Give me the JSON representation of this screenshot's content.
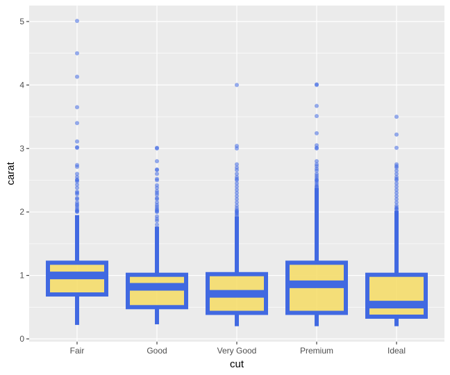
{
  "chart_data": {
    "type": "boxplot",
    "xlabel": "cut",
    "ylabel": "carat",
    "categories": [
      "Fair",
      "Good",
      "Very Good",
      "Premium",
      "Ideal"
    ],
    "ylim": [
      -0.04,
      5.25
    ],
    "yticks": [
      0,
      1,
      2,
      3,
      4,
      5
    ],
    "grid": true,
    "colors": {
      "box_outline": "#4169e1",
      "box_fill": "#f5dd6b",
      "outlier": "#4169e1",
      "panel": "#ebebeb"
    },
    "boxes": [
      {
        "cat": "Fair",
        "whisker_low": 0.22,
        "q1": 0.7,
        "median": 1.0,
        "q3": 1.2,
        "whisker_high": 1.95,
        "outliers": [
          5.01,
          4.5,
          4.13,
          3.65,
          3.4,
          3.11,
          3.02,
          3.01,
          2.74,
          2.71,
          2.6,
          2.55,
          2.51,
          2.5,
          2.48,
          2.43,
          2.38,
          2.32,
          2.3,
          2.28,
          2.22,
          2.2,
          2.15,
          2.12,
          2.1,
          2.07,
          2.04,
          2.02,
          2.01,
          2.0
        ]
      },
      {
        "cat": "Good",
        "whisker_low": 0.23,
        "q1": 0.5,
        "median": 0.82,
        "q3": 1.01,
        "whisker_high": 1.77,
        "outliers": [
          3.01,
          3.0,
          2.8,
          2.67,
          2.66,
          2.6,
          2.52,
          2.5,
          2.42,
          2.38,
          2.33,
          2.3,
          2.27,
          2.22,
          2.2,
          2.15,
          2.11,
          2.08,
          2.05,
          2.03,
          2.01,
          2.0,
          1.93,
          1.89,
          1.86,
          1.8
        ]
      },
      {
        "cat": "Very Good",
        "whisker_low": 0.2,
        "q1": 0.41,
        "median": 0.71,
        "q3": 1.02,
        "whisker_high": 1.93,
        "outliers": [
          4.0,
          3.04,
          3.0,
          2.75,
          2.7,
          2.66,
          2.6,
          2.55,
          2.52,
          2.5,
          2.45,
          2.4,
          2.35,
          2.3,
          2.25,
          2.2,
          2.15,
          2.1,
          2.06,
          2.03,
          2.01,
          2.0,
          1.98,
          1.96,
          1.94
        ]
      },
      {
        "cat": "Premium",
        "whisker_low": 0.2,
        "q1": 0.41,
        "median": 0.86,
        "q3": 1.2,
        "whisker_high": 2.38,
        "outliers": [
          4.01,
          4.0,
          3.67,
          3.51,
          3.24,
          3.05,
          3.01,
          3.0,
          2.8,
          2.75,
          2.72,
          2.68,
          2.65,
          2.6,
          2.57,
          2.54,
          2.51,
          2.5,
          2.48,
          2.45,
          2.42,
          2.4,
          2.39
        ]
      },
      {
        "cat": "Ideal",
        "whisker_low": 0.2,
        "q1": 0.35,
        "median": 0.54,
        "q3": 1.01,
        "whisker_high": 2.02,
        "outliers": [
          3.5,
          3.22,
          3.01,
          2.75,
          2.72,
          2.7,
          2.65,
          2.6,
          2.55,
          2.52,
          2.5,
          2.45,
          2.4,
          2.35,
          2.3,
          2.25,
          2.2,
          2.15,
          2.1,
          2.07,
          2.05,
          2.04
        ]
      }
    ]
  }
}
